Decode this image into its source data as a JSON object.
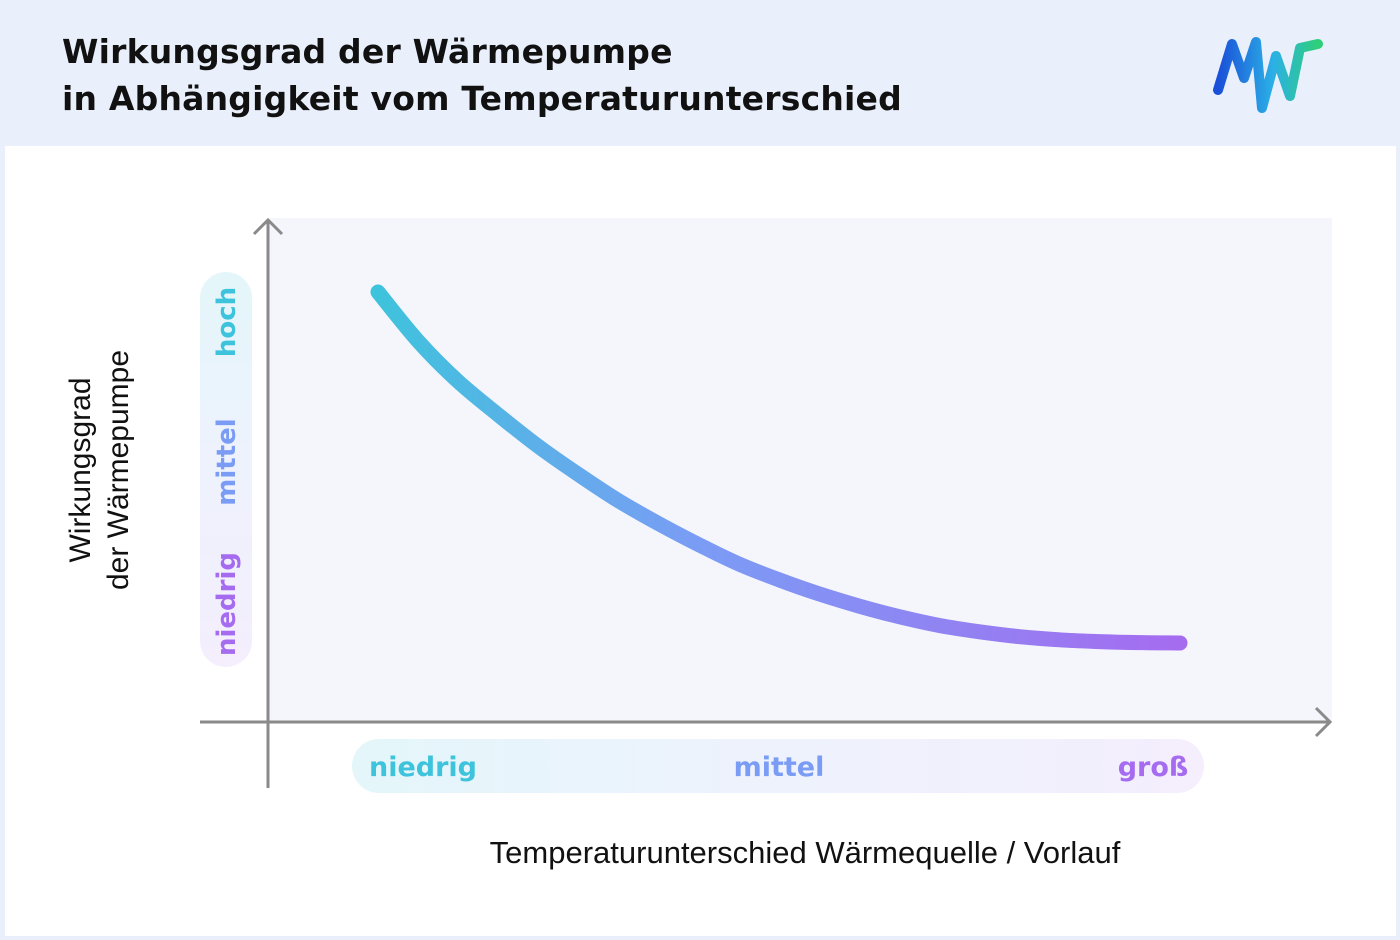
{
  "header": {
    "title_line1": "Wirkungsgrad der Wärmepumpe",
    "title_line2": "in Abhängigkeit vom Temperaturunterschied"
  },
  "chart_data": {
    "type": "line",
    "xlabel": "Temperaturunterschied Wärmequelle / Vorlauf",
    "ylabel_line1": "Wirkungsgrad",
    "ylabel_line2": "der Wärmepumpe",
    "x_ticks": [
      "niedrig",
      "mittel",
      "groß"
    ],
    "y_ticks": [
      "niedrig",
      "mittel",
      "hoch"
    ],
    "xlim": [
      0,
      1
    ],
    "ylim": [
      0,
      1
    ],
    "series": [
      {
        "x": [
          0.0,
          0.05,
          0.1,
          0.15,
          0.2,
          0.25,
          0.3,
          0.35,
          0.4,
          0.45,
          0.5,
          0.55,
          0.6,
          0.65,
          0.7,
          0.75,
          0.8,
          0.85,
          0.9,
          0.95,
          1.0
        ],
        "values": [
          1.0,
          0.86,
          0.745,
          0.65,
          0.56,
          0.48,
          0.405,
          0.34,
          0.28,
          0.225,
          0.18,
          0.14,
          0.105,
          0.075,
          0.05,
          0.032,
          0.018,
          0.009,
          0.004,
          0.001,
          0.0
        ]
      }
    ],
    "colors": {
      "gradient_start": "#3ec3dc",
      "gradient_mid": "#7b9cf5",
      "gradient_end": "#a56cf0",
      "axis": "#8a8a8a",
      "plot_background": "#f5f6fc"
    },
    "grid": false,
    "legend": "none"
  },
  "logo": {
    "name": "mvv-logo-icon"
  }
}
